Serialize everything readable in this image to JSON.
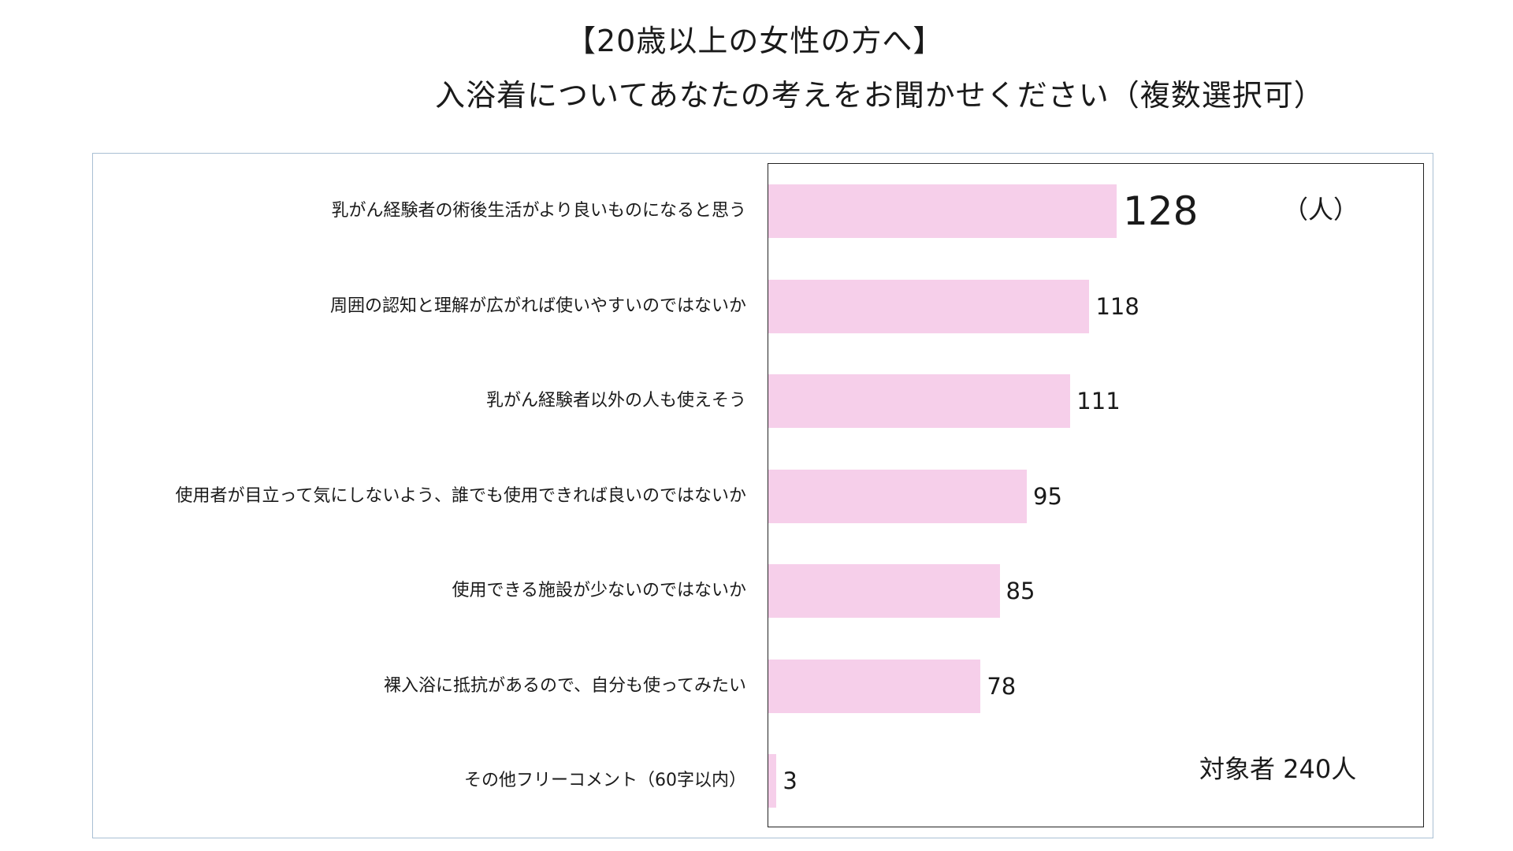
{
  "title": {
    "line1": "【20歳以上の女性の方へ】",
    "line2": "入浴着についてあなたの考えをお聞かせください（複数選択可）"
  },
  "unit": "（人）",
  "target_note": "対象者 240人",
  "colors": {
    "bar": "#f6cfea",
    "frame": "#a9bfd3",
    "plot_border": "#222222"
  },
  "chart_data": {
    "type": "bar",
    "orientation": "horizontal",
    "title": "入浴着についてあなたの考えをお聞かせください（複数選択可）",
    "categories": [
      "乳がん経験者の術後生活がより良いものになると思う",
      "周囲の認知と理解が広がれば使いやすいのではないか",
      "乳がん経験者以外の人も使えそう",
      "使用者が目立って気にしないよう、誰でも使用できれば良いのではないか",
      "使用できる施設が少ないのではないか",
      "裸入浴に抵抗があるので、自分も使ってみたい",
      "その他フリーコメント（60字以内）"
    ],
    "values": [
      128,
      118,
      111,
      95,
      85,
      78,
      3
    ],
    "xlim": [
      0,
      240
    ],
    "unit": "（人）",
    "grid": false,
    "legend": "none"
  }
}
